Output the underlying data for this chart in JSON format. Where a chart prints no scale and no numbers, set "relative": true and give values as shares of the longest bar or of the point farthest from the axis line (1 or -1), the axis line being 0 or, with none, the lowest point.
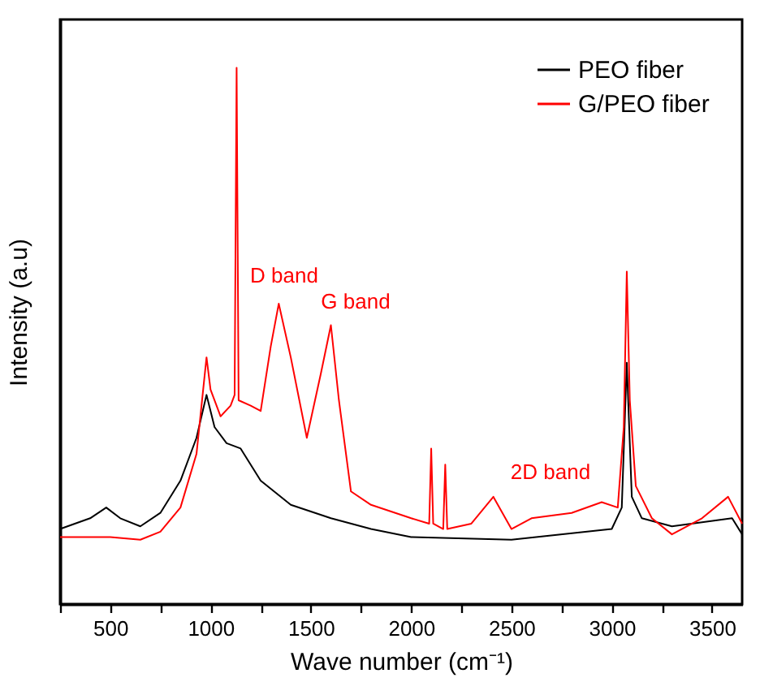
{
  "chart_data": {
    "type": "line",
    "xlabel": "Wave number (cm⁻¹)",
    "ylabel": "Intensity (a.u)",
    "relative": true,
    "xlim": [
      250,
      3650
    ],
    "xticks": [
      {
        "value": 250,
        "label": null
      },
      500,
      {
        "value": 750,
        "label": null
      },
      1000,
      {
        "value": 1250,
        "label": null
      },
      1500,
      {
        "value": 1750,
        "label": null
      },
      2000,
      {
        "value": 2250,
        "label": null
      },
      2500,
      {
        "value": 2750,
        "label": null
      },
      3000,
      {
        "value": 3250,
        "label": null
      },
      3500
    ],
    "grid": false,
    "legend": "top right",
    "line_style": "solid",
    "marker": "none",
    "series": [
      {
        "name": "PEO fiber",
        "color": "#000000",
        "x": [
          250,
          400,
          480,
          550,
          650,
          750,
          850,
          930,
          980,
          1020,
          1080,
          1150,
          1250,
          1400,
          1600,
          1800,
          2000,
          2500,
          3000,
          3050,
          3075,
          3100,
          3150,
          3300,
          3600,
          3650
        ],
        "values": [
          0.14,
          0.16,
          0.18,
          0.16,
          0.145,
          0.17,
          0.23,
          0.31,
          0.39,
          0.33,
          0.3,
          0.29,
          0.23,
          0.185,
          0.16,
          0.14,
          0.125,
          0.12,
          0.14,
          0.18,
          0.45,
          0.2,
          0.16,
          0.145,
          0.16,
          0.13
        ]
      },
      {
        "name": "G/PEO fiber",
        "color": "#ff0000",
        "x": [
          250,
          500,
          650,
          750,
          850,
          930,
          980,
          1000,
          1050,
          1100,
          1120,
          1130,
          1140,
          1200,
          1250,
          1300,
          1340,
          1400,
          1480,
          1550,
          1600,
          1640,
          1700,
          1800,
          2000,
          2090,
          2100,
          2110,
          2160,
          2170,
          2180,
          2300,
          2410,
          2500,
          2600,
          2800,
          2950,
          3030,
          3060,
          3075,
          3090,
          3120,
          3200,
          3300,
          3450,
          3580,
          3650
        ],
        "values": [
          0.125,
          0.125,
          0.12,
          0.135,
          0.18,
          0.28,
          0.46,
          0.4,
          0.35,
          0.37,
          0.39,
          1.0,
          0.38,
          0.37,
          0.36,
          0.48,
          0.56,
          0.46,
          0.31,
          0.43,
          0.52,
          0.38,
          0.21,
          0.185,
          0.16,
          0.15,
          0.29,
          0.15,
          0.14,
          0.26,
          0.14,
          0.15,
          0.2,
          0.14,
          0.16,
          0.17,
          0.19,
          0.18,
          0.33,
          0.62,
          0.38,
          0.22,
          0.16,
          0.13,
          0.16,
          0.2,
          0.15
        ]
      }
    ],
    "annotations": [
      "D band",
      "G band",
      "2D band"
    ]
  }
}
